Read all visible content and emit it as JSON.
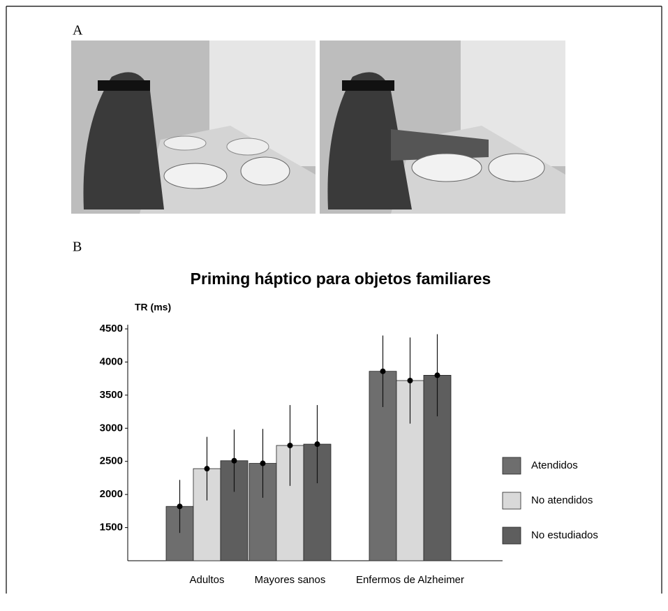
{
  "panel_labels": [
    "A",
    "B"
  ],
  "chart_data": {
    "type": "bar",
    "title": "Priming háptico para objetos familiares",
    "y_label": "TR (ms)",
    "categories": [
      "Adultos",
      "Mayores sanos",
      "Enfermos de Alzheimer"
    ],
    "series": [
      {
        "name": "Atendidos",
        "color": "#6e6e6e",
        "values": [
          1820,
          2470,
          3860
        ],
        "error": [
          400,
          520,
          540
        ]
      },
      {
        "name": "No atendidos",
        "color": "#d9d9d9",
        "values": [
          2390,
          2740,
          3720
        ],
        "error": [
          480,
          610,
          650
        ]
      },
      {
        "name": "No estudiados",
        "color": "#5e5e5e",
        "values": [
          2510,
          2760,
          3800
        ],
        "error": [
          470,
          590,
          620
        ]
      }
    ],
    "ylim": [
      1000,
      4500
    ],
    "yticks": [
      1500,
      2000,
      2500,
      3000,
      3500,
      4000,
      4500
    ],
    "grid": false,
    "legend": "right"
  }
}
